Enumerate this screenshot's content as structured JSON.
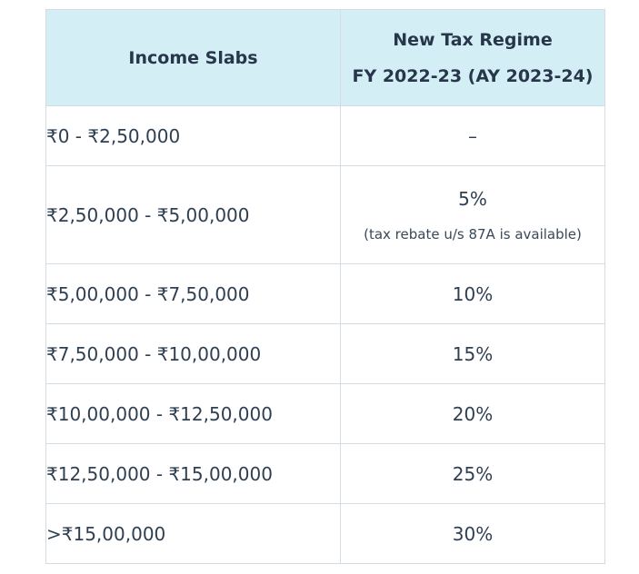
{
  "table": {
    "header": {
      "col1": "Income Slabs",
      "col2_line1": "New Tax Regime",
      "col2_line2": "FY 2022-23 (AY 2023-24)"
    },
    "rows": [
      {
        "slab": "₹0 - ₹2,50,000",
        "rate": "–"
      },
      {
        "slab": "₹2,50,000 - ₹5,00,000",
        "rate": "5%",
        "note": "(tax rebate u/s 87A is available)"
      },
      {
        "slab": "₹5,00,000 - ₹7,50,000",
        "rate": "10%"
      },
      {
        "slab": "₹7,50,000 - ₹10,00,000",
        "rate": "15%"
      },
      {
        "slab": "₹10,00,000 - ₹12,50,000",
        "rate": "20%"
      },
      {
        "slab": "₹12,50,000 - ₹15,00,000",
        "rate": "25%"
      },
      {
        "slab": ">₹15,00,000",
        "rate": "30%"
      }
    ]
  },
  "colors": {
    "header_bg": "#d4eef6",
    "border": "#d5dde3",
    "text": "#2f3f52"
  }
}
